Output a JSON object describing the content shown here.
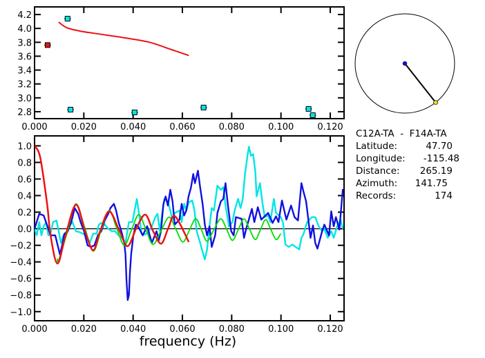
{
  "chart_data": [
    {
      "type": "scatter",
      "xlim": [
        0,
        0.1256
      ],
      "ylim": [
        2.7,
        4.31
      ],
      "x_ticks": [
        "0.000",
        "0.020",
        "0.040",
        "0.060",
        "0.080",
        "0.100",
        "0.120"
      ],
      "y_ticks": [
        "2.8",
        "3.0",
        "3.2",
        "3.4",
        "3.6",
        "3.8",
        "4.0",
        "4.2"
      ],
      "series": [
        {
          "color": "#00e5e5",
          "marker": "square",
          "x": [
            0.0134,
            0.0146,
            0.0406,
            0.0686,
            0.1112,
            0.1129
          ],
          "y": [
            4.14,
            2.83,
            2.79,
            2.86,
            2.84,
            2.75
          ]
        },
        {
          "color": "#ee1111",
          "marker": "square",
          "x": [
            0.0053
          ],
          "y": [
            3.76
          ]
        },
        {
          "color": "#ee1111",
          "marker": "line",
          "x": [
            0.0098,
            0.0131,
            0.0187,
            0.028,
            0.0373,
            0.0467,
            0.0551,
            0.0626
          ],
          "y": [
            4.09,
            4.01,
            3.96,
            3.91,
            3.86,
            3.8,
            3.7,
            3.61
          ]
        }
      ]
    },
    {
      "type": "line",
      "xlabel": "frequency (Hz)",
      "xlim": [
        0,
        0.1256
      ],
      "ylim": [
        -1.11,
        1.12
      ],
      "x_ticks": [
        "0.000",
        "0.020",
        "0.040",
        "0.060",
        "0.080",
        "0.100",
        "0.120"
      ],
      "y_ticks": [
        "-1.0",
        "-0.8",
        "-0.6",
        "-0.4",
        "-0.2",
        "0.0",
        "0.2",
        "0.4",
        "0.6",
        "0.8",
        "1.0"
      ],
      "zero_line": true,
      "series": [
        {
          "color": "#00e5e5",
          "smooth": false,
          "x": [
            0,
            0.0009,
            0.0019,
            0.0028,
            0.0037,
            0.0047,
            0.0056,
            0.0065,
            0.0075,
            0.0089,
            0.0098,
            0.0107,
            0.0117,
            0.0131,
            0.0145,
            0.0154,
            0.0168,
            0.0182,
            0.0196,
            0.021,
            0.0224,
            0.0238,
            0.0252,
            0.0261,
            0.0271,
            0.0285,
            0.0299,
            0.0313,
            0.0327,
            0.0341,
            0.0355,
            0.0369,
            0.0383,
            0.0397,
            0.0406,
            0.0415,
            0.0425,
            0.0434,
            0.0448,
            0.0462,
            0.0476,
            0.049,
            0.0499,
            0.0509,
            0.0518,
            0.0527,
            0.0541,
            0.0551,
            0.056,
            0.0569,
            0.0588,
            0.0597,
            0.0607,
            0.0616,
            0.0626,
            0.064,
            0.0649,
            0.0658,
            0.0672,
            0.0682,
            0.0691,
            0.07,
            0.071,
            0.0719,
            0.0728,
            0.0742,
            0.0756,
            0.0766,
            0.0775,
            0.0789,
            0.0803,
            0.0812,
            0.0826,
            0.0836,
            0.0845,
            0.0854,
            0.0864,
            0.087,
            0.0878,
            0.0887,
            0.0896,
            0.0901,
            0.0915,
            0.0924,
            0.0934,
            0.0948,
            0.0957,
            0.0971,
            0.098,
            0.0999,
            0.1008,
            0.1018,
            0.1032,
            0.1046,
            0.106,
            0.1074,
            0.1083,
            0.1092,
            0.1106,
            0.1125,
            0.1139,
            0.1153,
            0.1167,
            0.1176,
            0.119,
            0.1204,
            0.1214,
            0.1228,
            0.1242,
            0.1251
          ],
          "y": [
            0,
            -0.08,
            0.08,
            -0.08,
            0.03,
            0.08,
            -0.08,
            -0.06,
            0.08,
            0.1,
            -0.03,
            -0.17,
            -0.08,
            -0.06,
            0.05,
            0.08,
            -0.03,
            -0.04,
            -0.06,
            -0.08,
            -0.17,
            -0.06,
            -0.06,
            0.05,
            0.07,
            0.05,
            0,
            -0.03,
            -0.03,
            -0.08,
            -0.11,
            -0.17,
            0.08,
            0.08,
            0.22,
            0.36,
            0.16,
            -0.06,
            -0.07,
            -0.04,
            0.03,
            0.14,
            0.18,
            -0.03,
            0.19,
            0.36,
            0.33,
            0.22,
            0.11,
            0.19,
            0.22,
            0.08,
            0.3,
            0.22,
            0.32,
            0.34,
            0.22,
            -0.03,
            -0.17,
            -0.28,
            -0.37,
            -0.25,
            0.03,
            0.25,
            0.22,
            0.52,
            0.47,
            0.5,
            0.28,
            0.03,
            0.08,
            0.22,
            0.36,
            0.25,
            0.36,
            0.66,
            0.88,
            0.99,
            0.88,
            0.9,
            0.69,
            0.39,
            0.55,
            0.33,
            0.14,
            0.16,
            0.08,
            0.36,
            0.19,
            0.14,
            0.08,
            -0.19,
            -0.22,
            -0.19,
            -0.22,
            -0.25,
            -0.11,
            -0.06,
            0.08,
            0.14,
            0.14,
            0.03,
            -0.03,
            0,
            -0.11,
            -0.03,
            -0.11,
            0.03,
            0.11,
            0
          ]
        },
        {
          "color": "#1010e0",
          "smooth": false,
          "x": [
            0,
            0.0019,
            0.0037,
            0.0056,
            0.0065,
            0.0084,
            0.0103,
            0.0112,
            0.0121,
            0.0135,
            0.0149,
            0.0163,
            0.0177,
            0.0187,
            0.0201,
            0.0215,
            0.0229,
            0.0243,
            0.0257,
            0.0271,
            0.0285,
            0.0299,
            0.0308,
            0.0322,
            0.0331,
            0.0341,
            0.0355,
            0.0364,
            0.0369,
            0.0373,
            0.0378,
            0.0383,
            0.0387,
            0.0392,
            0.0401,
            0.0411,
            0.042,
            0.0439,
            0.0457,
            0.0476,
            0.0495,
            0.0504,
            0.0513,
            0.0523,
            0.0532,
            0.0541,
            0.0551,
            0.056,
            0.0569,
            0.0588,
            0.0597,
            0.0607,
            0.0616,
            0.0625,
            0.0635,
            0.0644,
            0.0651,
            0.0663,
            0.0672,
            0.0682,
            0.0691,
            0.07,
            0.071,
            0.0719,
            0.0733,
            0.0742,
            0.0756,
            0.0766,
            0.0775,
            0.0784,
            0.0798,
            0.0808,
            0.0817,
            0.084,
            0.085,
            0.0859,
            0.0882,
            0.0892,
            0.0906,
            0.092,
            0.0948,
            0.0966,
            0.098,
            0.099,
            0.1004,
            0.1022,
            0.1041,
            0.1055,
            0.1069,
            0.1083,
            0.1092,
            0.1102,
            0.1111,
            0.112,
            0.113,
            0.1139,
            0.1148,
            0.1167,
            0.1176,
            0.1195,
            0.1204,
            0.1214,
            0.1223,
            0.1237,
            0.1251
          ],
          "y": [
            0,
            0.18,
            0.16,
            0,
            -0.08,
            -0.08,
            -0.31,
            -0.2,
            -0.06,
            -0.03,
            0.08,
            0.25,
            0.18,
            0.08,
            -0.03,
            -0.2,
            -0.22,
            -0.2,
            -0.08,
            -0.03,
            0.1,
            0.18,
            0.25,
            0.3,
            0.22,
            0.08,
            -0.06,
            -0.17,
            -0.31,
            -0.61,
            -0.86,
            -0.8,
            -0.53,
            -0.31,
            -0.08,
            0.05,
            0.03,
            -0.08,
            0.03,
            -0.17,
            -0.03,
            -0.14,
            -0.03,
            0.3,
            0.39,
            0.28,
            0.47,
            0.33,
            0.05,
            0.11,
            0.3,
            0.16,
            0.22,
            0.39,
            0.5,
            0.66,
            0.55,
            0.7,
            0.5,
            0.3,
            0.05,
            -0.08,
            0.03,
            -0.22,
            -0.08,
            0.19,
            0.33,
            0.36,
            0.55,
            0.3,
            -0.03,
            -0.08,
            0.14,
            0.12,
            -0.11,
            0,
            0.24,
            0.08,
            0.26,
            0.11,
            0.19,
            0.07,
            0.15,
            0.08,
            0.34,
            0.11,
            0.28,
            0.14,
            0.1,
            0.55,
            0.44,
            0.33,
            0.11,
            -0.11,
            0.04,
            -0.17,
            -0.24,
            -0.03,
            0.05,
            -0.08,
            0.21,
            0.03,
            0.14,
            -0.01,
            0.48
          ]
        },
        {
          "color": "#00dd00",
          "smooth": true,
          "x": [
            0.0092,
            0.0098,
            0.0133,
            0.0168,
            0.0203,
            0.0238,
            0.027,
            0.0303,
            0.0333,
            0.0364,
            0.0394,
            0.0423,
            0.0452,
            0.0481,
            0.0514,
            0.0546,
            0.0574,
            0.0602,
            0.0628,
            0.0654,
            0.0677,
            0.07,
            0.0728,
            0.0756,
            0.078,
            0.0803,
            0.0827,
            0.085,
            0.0873,
            0.0896,
            0.0917,
            0.0938,
            0.0959,
            0.098,
            0.0999
          ],
          "y": [
            -0.36,
            -0.38,
            -0.04,
            0.3,
            0.02,
            -0.27,
            -0.02,
            0.22,
            0.01,
            -0.2,
            -0.01,
            0.17,
            -0.01,
            -0.19,
            -0.02,
            0.14,
            -0.01,
            -0.16,
            -0.02,
            0.12,
            -0.01,
            -0.15,
            -0.01,
            0.12,
            -0.01,
            -0.14,
            -0.01,
            0.12,
            -0.01,
            -0.13,
            -0.01,
            0.11,
            -0.01,
            -0.13,
            -0.06
          ]
        },
        {
          "color": "#ee1111",
          "smooth": true,
          "x": [
            0,
            0.0023,
            0.0051,
            0.0065,
            0.0093,
            0.0126,
            0.0168,
            0.0205,
            0.0238,
            0.0266,
            0.0303,
            0.0345,
            0.0378,
            0.0415,
            0.045,
            0.0481,
            0.0514,
            0.0543,
            0.057,
            0.0626
          ],
          "y": [
            1.0,
            0.86,
            0.3,
            -0.08,
            -0.42,
            -0.08,
            0.29,
            -0.03,
            -0.26,
            -0.03,
            0.21,
            -0.03,
            -0.21,
            0.02,
            0.17,
            -0.03,
            -0.18,
            0.01,
            0.15,
            -0.16
          ]
        }
      ]
    }
  ],
  "map": {
    "azimuth": 141.75
  },
  "info": {
    "pair": "C12A-TA  -  F14A-TA",
    "latitude_label": "Latitude:",
    "latitude_value": "47.70",
    "longitude_label": "Longitude:",
    "longitude_value": "-115.48",
    "distance_label": "Distance:",
    "distance_value": "265.19",
    "azimuth_label": "Azimuth:",
    "azimuth_value": "141.75",
    "records_label": "Records:",
    "records_value": "174"
  }
}
